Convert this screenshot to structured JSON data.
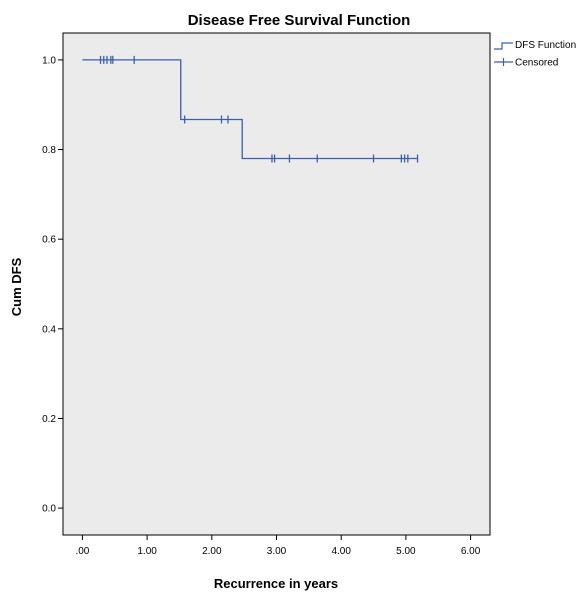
{
  "chart_data": {
    "type": "line",
    "title": "Disease Free Survival Function",
    "xlabel": "Recurrence in years",
    "ylabel": "Cum DFS",
    "xlim": [
      -0.3,
      6.3
    ],
    "ylim": [
      -0.06,
      1.06
    ],
    "xticks": [
      0,
      1,
      2,
      3,
      4,
      5,
      6
    ],
    "xtick_labels": [
      ".00",
      "1.00",
      "2.00",
      "3.00",
      "4.00",
      "5.00",
      "6.00"
    ],
    "yticks": [
      0,
      0.2,
      0.4,
      0.6,
      0.8,
      1.0
    ],
    "ytick_labels": [
      "0.0",
      "0.2",
      "0.4",
      "0.6",
      "0.8",
      "1.0"
    ],
    "grid": false,
    "legend_position": "outside-top-right",
    "background_color": "#ebebeb",
    "series_color": "#3a5fb0",
    "series": [
      {
        "name": "DFS Function",
        "kind": "step",
        "points": [
          [
            0,
            1.0
          ],
          [
            1.52,
            1.0
          ],
          [
            1.52,
            0.867
          ],
          [
            2.47,
            0.867
          ],
          [
            2.47,
            0.78
          ],
          [
            5.18,
            0.78
          ]
        ]
      },
      {
        "name": "Censored",
        "kind": "censor-marks",
        "points": [
          [
            0.28,
            1.0
          ],
          [
            0.33,
            1.0
          ],
          [
            0.38,
            1.0
          ],
          [
            0.44,
            1.0
          ],
          [
            0.47,
            1.0
          ],
          [
            0.8,
            1.0
          ],
          [
            1.58,
            0.867
          ],
          [
            2.15,
            0.867
          ],
          [
            2.25,
            0.867
          ],
          [
            2.93,
            0.78
          ],
          [
            2.97,
            0.78
          ],
          [
            3.2,
            0.78
          ],
          [
            3.63,
            0.78
          ],
          [
            4.5,
            0.78
          ],
          [
            4.93,
            0.78
          ],
          [
            4.98,
            0.78
          ],
          [
            5.03,
            0.78
          ],
          [
            5.18,
            0.78
          ]
        ]
      }
    ]
  }
}
